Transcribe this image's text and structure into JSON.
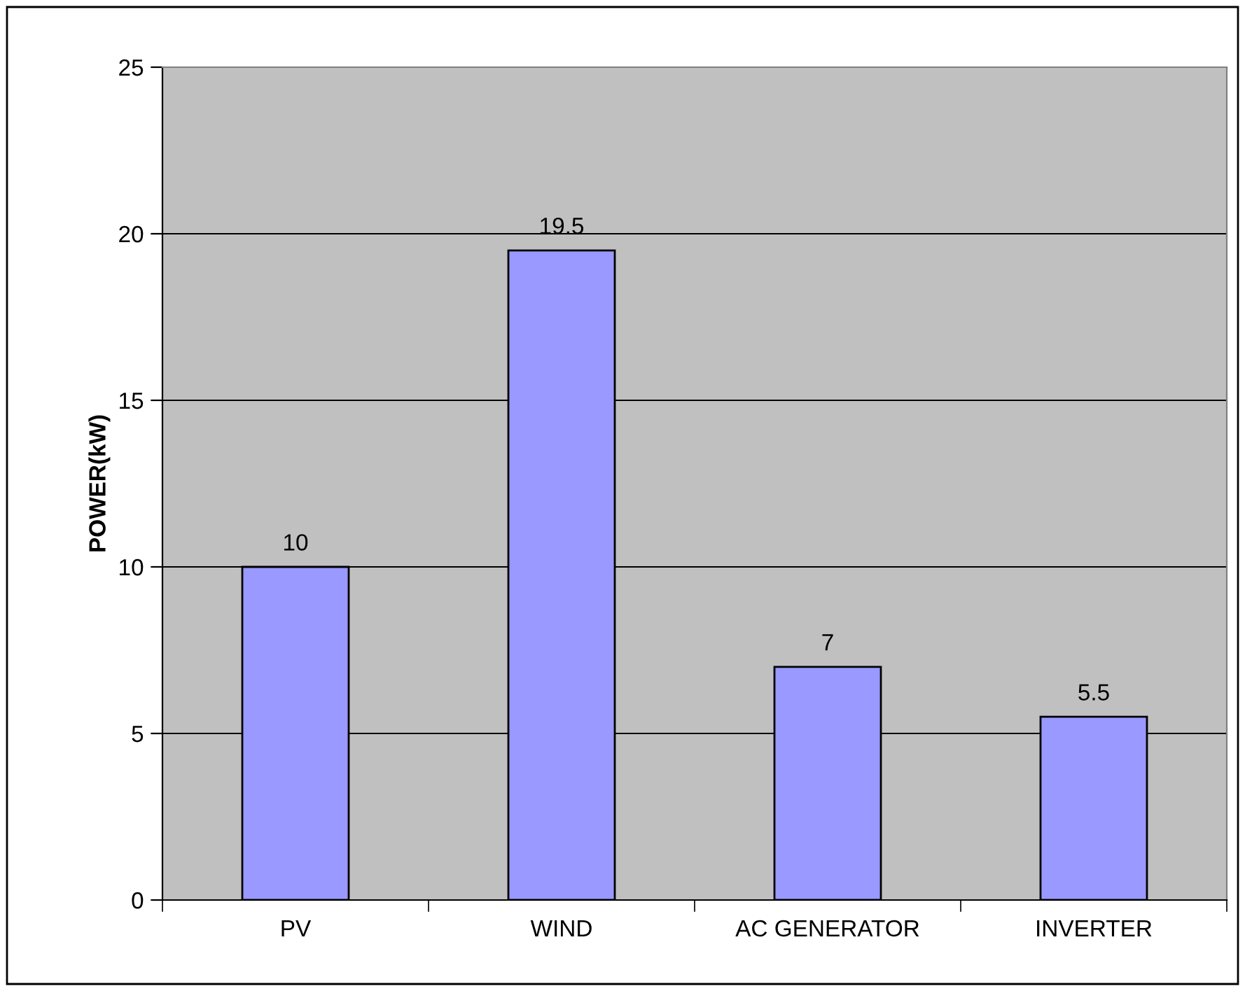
{
  "chart_data": {
    "type": "bar",
    "ylabel": "POWER(kW)",
    "categories": [
      "PV",
      "WIND",
      "AC GENERATOR",
      "INVERTER"
    ],
    "values": [
      10,
      19.5,
      7,
      5.5
    ],
    "color": "#9999ff",
    "ylim": [
      0,
      25
    ],
    "yticks": [
      0,
      5,
      10,
      15,
      20,
      25
    ],
    "grid": "y",
    "data_labels": true
  }
}
